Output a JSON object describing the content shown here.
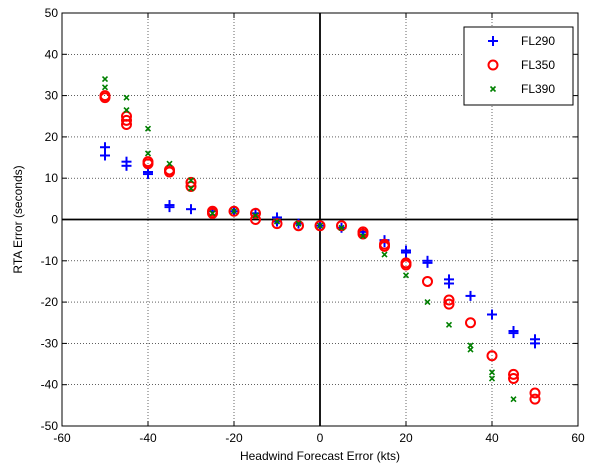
{
  "chart_data": {
    "type": "scatter",
    "title": "",
    "xlabel": "Headwind Forecast Error (kts)",
    "ylabel": "RTA Error (seconds)",
    "xlim": [
      -60,
      60
    ],
    "ylim": [
      -50,
      50
    ],
    "xticks": [
      -60,
      -40,
      -20,
      0,
      20,
      40,
      60
    ],
    "yticks": [
      -50,
      -40,
      -30,
      -20,
      -10,
      0,
      10,
      20,
      30,
      40,
      50
    ],
    "xtick_labels": [
      "-60",
      "-40",
      "-20",
      "0",
      "20",
      "40",
      "60"
    ],
    "ytick_labels": [
      "-50",
      "-40",
      "-30",
      "-20",
      "-10",
      "0",
      "10",
      "20",
      "30",
      "40",
      "50"
    ],
    "grid": "dotted",
    "zero_lines": true,
    "legend_position": "top-right",
    "series": [
      {
        "name": "FL290",
        "marker": "plus",
        "color": "#0000ff",
        "points": [
          [
            -50,
            17.5
          ],
          [
            -50,
            15.5
          ],
          [
            -45,
            14
          ],
          [
            -45,
            13
          ],
          [
            -40,
            11.5
          ],
          [
            -40,
            11
          ],
          [
            -35,
            3.5
          ],
          [
            -35,
            3
          ],
          [
            -30,
            2.5
          ],
          [
            -25,
            2
          ],
          [
            -20,
            2
          ],
          [
            -15,
            1.5
          ],
          [
            -10,
            0.5
          ],
          [
            -10,
            -0.5
          ],
          [
            -5,
            -1
          ],
          [
            0,
            -1.5
          ],
          [
            5,
            -2
          ],
          [
            10,
            -3
          ],
          [
            15,
            -5
          ],
          [
            15,
            -5.5
          ],
          [
            20,
            -7.5
          ],
          [
            20,
            -8
          ],
          [
            25,
            -10
          ],
          [
            25,
            -10.5
          ],
          [
            30,
            -14.5
          ],
          [
            30,
            -15.5
          ],
          [
            35,
            -18.5
          ],
          [
            40,
            -23
          ],
          [
            45,
            -27
          ],
          [
            45,
            -27.5
          ],
          [
            50,
            -29
          ],
          [
            50,
            -30
          ]
        ]
      },
      {
        "name": "FL350",
        "marker": "circle",
        "color": "#ff0000",
        "points": [
          [
            -50,
            30
          ],
          [
            -50,
            29.5
          ],
          [
            -45,
            25
          ],
          [
            -45,
            24
          ],
          [
            -45,
            23
          ],
          [
            -40,
            14
          ],
          [
            -40,
            13.5
          ],
          [
            -35,
            12
          ],
          [
            -35,
            11.5
          ],
          [
            -30,
            9
          ],
          [
            -30,
            8
          ],
          [
            -25,
            2
          ],
          [
            -25,
            1.5
          ],
          [
            -20,
            2
          ],
          [
            -15,
            1.5
          ],
          [
            -15,
            0
          ],
          [
            -10,
            -1
          ],
          [
            -5,
            -1.5
          ],
          [
            0,
            -1.5
          ],
          [
            5,
            -1.5
          ],
          [
            10,
            -3
          ],
          [
            10,
            -3.5
          ],
          [
            15,
            -6
          ],
          [
            15,
            -6.5
          ],
          [
            20,
            -10.5
          ],
          [
            20,
            -11
          ],
          [
            25,
            -15
          ],
          [
            30,
            -19.5
          ],
          [
            30,
            -20.5
          ],
          [
            35,
            -25
          ],
          [
            40,
            -33
          ],
          [
            45,
            -37.5
          ],
          [
            45,
            -38.5
          ],
          [
            50,
            -42
          ],
          [
            50,
            -43.5
          ]
        ]
      },
      {
        "name": "FL390",
        "marker": "x",
        "color": "#008000",
        "points": [
          [
            -50,
            34
          ],
          [
            -50,
            32
          ],
          [
            -45,
            29.5
          ],
          [
            -45,
            26.5
          ],
          [
            -40,
            22
          ],
          [
            -40,
            16
          ],
          [
            -35,
            13.5
          ],
          [
            -30,
            9.5
          ],
          [
            -30,
            7.5
          ],
          [
            -25,
            1.5
          ],
          [
            -20,
            2
          ],
          [
            -15,
            1
          ],
          [
            -10,
            -0.5
          ],
          [
            -5,
            -1
          ],
          [
            0,
            -1.5
          ],
          [
            5,
            -2
          ],
          [
            10,
            -4
          ],
          [
            15,
            -8.5
          ],
          [
            20,
            -13.5
          ],
          [
            25,
            -20
          ],
          [
            30,
            -25.5
          ],
          [
            35,
            -30.5
          ],
          [
            35,
            -31.5
          ],
          [
            40,
            -37
          ],
          [
            40,
            -38.5
          ],
          [
            45,
            -43.5
          ]
        ]
      }
    ]
  }
}
